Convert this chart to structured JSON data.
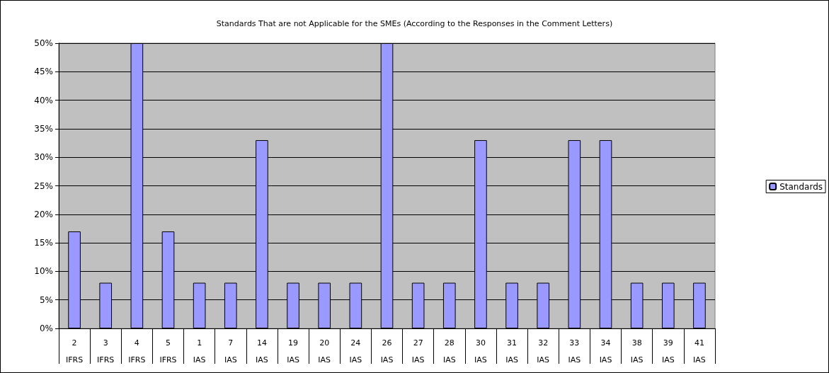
{
  "chart_data": {
    "type": "bar",
    "title": "Standards That are not Applicable for the SMEs (According to the Responses in the Comment Letters)",
    "categories": [
      "2\nIFRS",
      "3\nIFRS",
      "4\nIFRS",
      "5\nIFRS",
      "1\nIAS",
      "7\nIAS",
      "14\nIAS",
      "19\nIAS",
      "20\nIAS",
      "24\nIAS",
      "26\nIAS",
      "27\nIAS",
      "28\nIAS",
      "30\nIAS",
      "31\nIAS",
      "32\nIAS",
      "33\nIAS",
      "34\nIAS",
      "38\nIAS",
      "39\nIAS",
      "41\nIAS"
    ],
    "series": [
      {
        "name": "Standards",
        "color": "#9999ff",
        "values": [
          17,
          8,
          50,
          17,
          8,
          8,
          33,
          8,
          8,
          8,
          50,
          8,
          8,
          33,
          8,
          8,
          33,
          33,
          8,
          8,
          8
        ]
      }
    ],
    "ylim": [
      0,
      50
    ],
    "yticks": [
      {
        "value": 0,
        "label": "0%"
      },
      {
        "value": 5,
        "label": "5%"
      },
      {
        "value": 10,
        "label": "10%"
      },
      {
        "value": 15,
        "label": "15%"
      },
      {
        "value": 20,
        "label": "20%"
      },
      {
        "value": 25,
        "label": "25%"
      },
      {
        "value": 30,
        "label": "30%"
      },
      {
        "value": 35,
        "label": "35%"
      },
      {
        "value": 40,
        "label": "40%"
      },
      {
        "value": 45,
        "label": "45%"
      },
      {
        "value": 50,
        "label": "50%"
      }
    ],
    "grid": "y",
    "legend": "right"
  }
}
